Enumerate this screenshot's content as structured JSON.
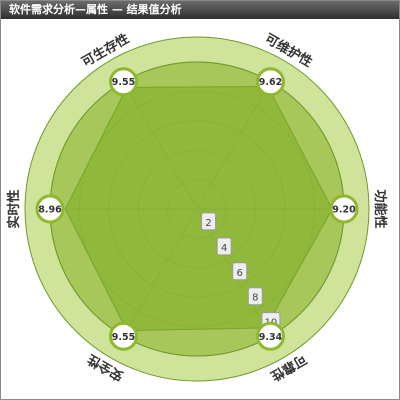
{
  "title": "软件需求分析—属性 — 结果值分析",
  "colors": {
    "outer_ring": "#cfe39a",
    "inner_disk": "#a7c75a",
    "polygon_fill": "#8cb536",
    "ring_line": "#6f9a2a",
    "badge_border": "#8fb830",
    "label_text": "#333333",
    "tick_box": "#eeeeee"
  },
  "chart_data": {
    "type": "radar",
    "title": "",
    "axes": [
      "可维护性",
      "功能性",
      "可靠性",
      "安全性",
      "实时性",
      "可生存性"
    ],
    "values": [
      9.62,
      9.2,
      9.34,
      9.55,
      8.96,
      9.55
    ],
    "value_labels": [
      "9.62",
      "9.20",
      "9.34",
      "9.55",
      "8.96",
      "9.55"
    ],
    "range": [
      0,
      10
    ],
    "ticks": [
      2,
      4,
      6,
      8,
      10
    ],
    "tick_labels": [
      "2",
      "4",
      "6",
      "8",
      "10"
    ],
    "grid": true,
    "legend": "none"
  }
}
